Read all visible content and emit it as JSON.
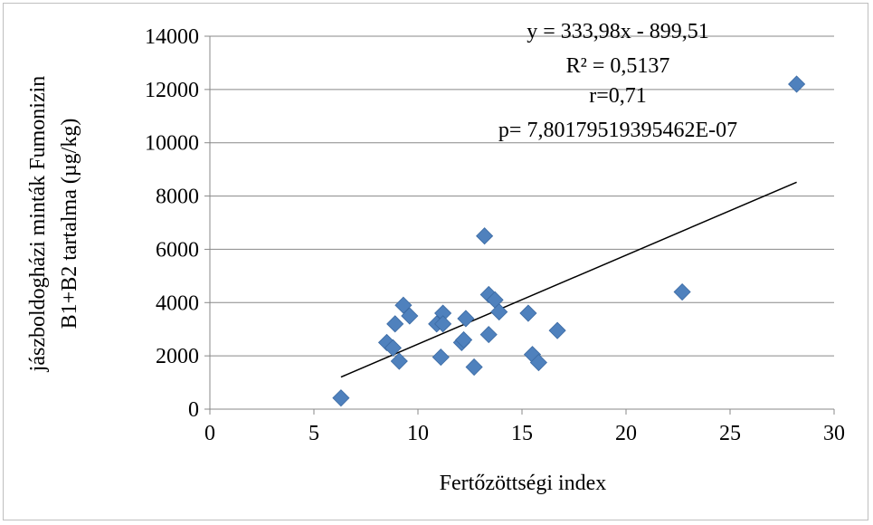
{
  "chart_data": {
    "type": "scatter",
    "xlabel": "Fertőzöttségi index",
    "ylabel_lines": [
      "jászboldogházi minták Fumonizin",
      "B1+B2 tartalma  (µg/kg)"
    ],
    "xlim": [
      0,
      30
    ],
    "ylim": [
      0,
      14000
    ],
    "x_ticks": [
      0,
      5,
      10,
      15,
      20,
      25,
      30
    ],
    "y_ticks": [
      0,
      2000,
      4000,
      6000,
      8000,
      10000,
      12000,
      14000
    ],
    "grid": "horizontal",
    "marker_color": "#4f81bd",
    "trendline_color": "#000000",
    "annotations": [
      "y = 333,98x - 899,51",
      "R² = 0,5137",
      "r=0,71",
      "p= 7,80179519395462E-07"
    ],
    "trendline": {
      "slope": 333.98,
      "intercept": -899.51,
      "x_range": [
        6.3,
        28.2
      ]
    },
    "points": [
      [
        6.3,
        420
      ],
      [
        8.5,
        2500
      ],
      [
        8.8,
        2300
      ],
      [
        8.9,
        3200
      ],
      [
        9.1,
        1800
      ],
      [
        9.3,
        3900
      ],
      [
        9.6,
        3500
      ],
      [
        10.9,
        3200
      ],
      [
        11.1,
        1950
      ],
      [
        11.2,
        3600
      ],
      [
        11.2,
        3200
      ],
      [
        12.1,
        2500
      ],
      [
        12.2,
        2600
      ],
      [
        12.3,
        3400
      ],
      [
        12.7,
        1580
      ],
      [
        13.2,
        6500
      ],
      [
        13.4,
        2800
      ],
      [
        13.4,
        4300
      ],
      [
        13.7,
        4100
      ],
      [
        13.9,
        3650
      ],
      [
        15.3,
        3600
      ],
      [
        15.5,
        2050
      ],
      [
        15.8,
        1750
      ],
      [
        16.7,
        2950
      ],
      [
        22.7,
        4400
      ],
      [
        28.2,
        12200
      ]
    ]
  }
}
